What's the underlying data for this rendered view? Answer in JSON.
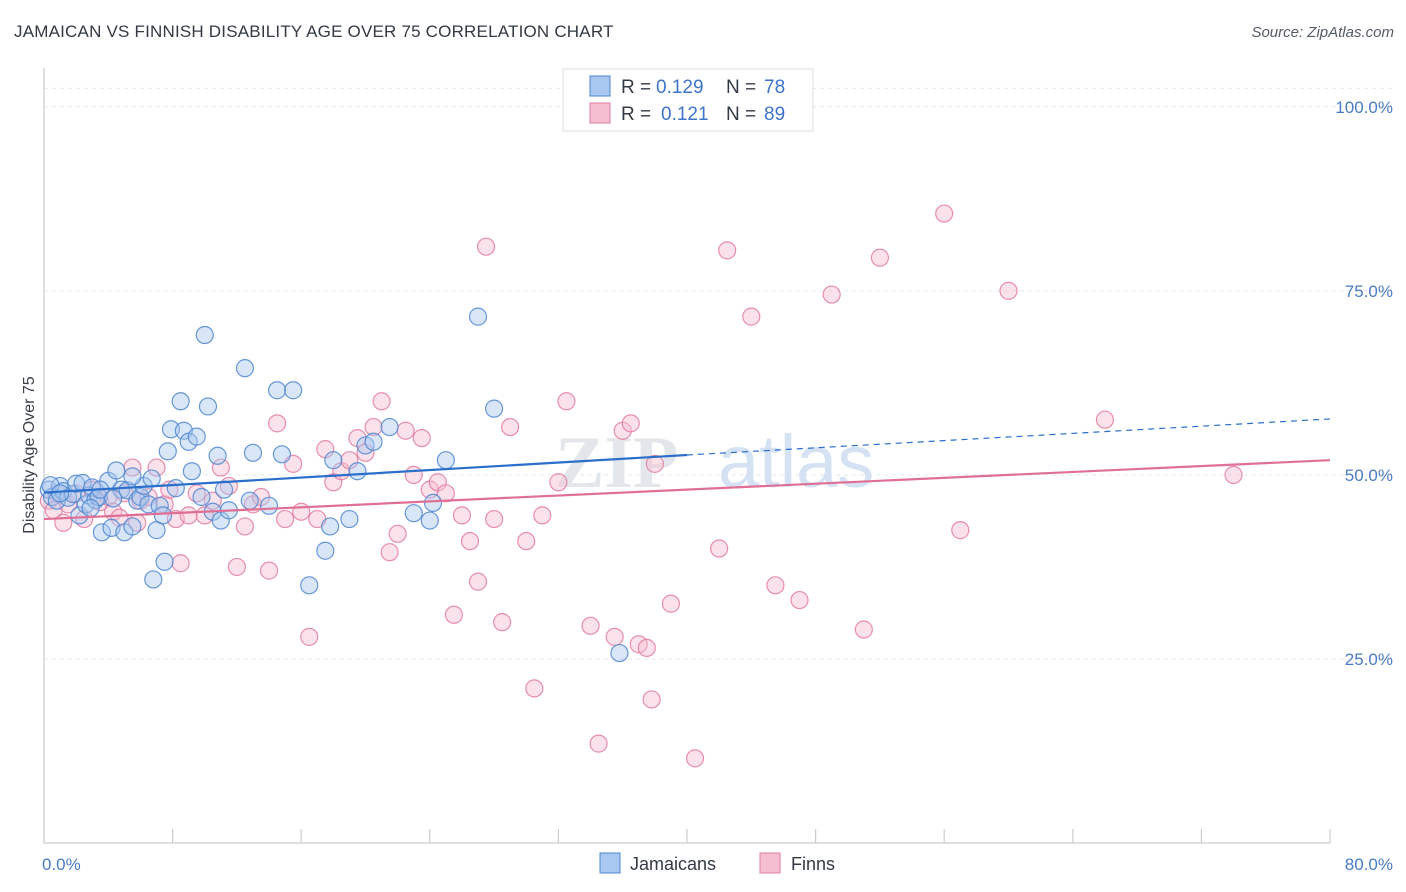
{
  "title": "JAMAICAN VS FINNISH DISABILITY AGE OVER 75 CORRELATION CHART",
  "source": "Source: ZipAtlas.com",
  "watermark": {
    "zip": "ZIP",
    "atlas": "atlas"
  },
  "chart_data": {
    "type": "scatter",
    "xlabel": "",
    "ylabel": "Disability Age Over 75",
    "xlim": [
      0,
      80
    ],
    "ylim": [
      0,
      105
    ],
    "x_tick_labels": [
      "0.0%",
      "80.0%"
    ],
    "y_ticks": [
      25,
      50,
      75,
      100
    ],
    "y_tick_labels": [
      "25.0%",
      "50.0%",
      "75.0%",
      "100.0%"
    ],
    "grid": true,
    "legend_placement": "top-center",
    "colors": {
      "jamaicans_fill": "#a9c8ef",
      "jamaicans_stroke": "#4f86d0",
      "jamaicans_line": "#2a6fcb",
      "finns_fill": "#f6bfd1",
      "finns_stroke": "#e37ba0",
      "finns_line": "#e06f96"
    },
    "legend": [
      {
        "r_label": "R =",
        "r_value": "0.129",
        "n_label": "N =",
        "n_value": "78"
      },
      {
        "r_label": "R =",
        "r_value": "0.121",
        "n_label": "N =",
        "n_value": "89"
      }
    ],
    "series": [
      {
        "name": "Jamaicans",
        "trend": {
          "x0": 0,
          "y0": 47.6,
          "x1": 40,
          "y1": 52.7,
          "dash_x1": 80,
          "dash_y1": 57.6
        },
        "points": [
          [
            0.3,
            48.0
          ],
          [
            0.5,
            47.0
          ],
          [
            0.8,
            46.5
          ],
          [
            1.0,
            48.5
          ],
          [
            1.2,
            47.8
          ],
          [
            1.5,
            46.9
          ],
          [
            1.8,
            47.4
          ],
          [
            2.0,
            48.8
          ],
          [
            2.2,
            44.5
          ],
          [
            2.4,
            48.9
          ],
          [
            2.6,
            46.0
          ],
          [
            2.8,
            47.2
          ],
          [
            3.0,
            48.3
          ],
          [
            3.2,
            46.6
          ],
          [
            3.4,
            47.0
          ],
          [
            3.6,
            42.2
          ],
          [
            4.0,
            49.2
          ],
          [
            4.2,
            42.8
          ],
          [
            4.5,
            50.6
          ],
          [
            4.8,
            48.0
          ],
          [
            5.0,
            42.2
          ],
          [
            5.2,
            47.9
          ],
          [
            5.5,
            43.0
          ],
          [
            5.8,
            46.5
          ],
          [
            6.0,
            47.0
          ],
          [
            6.2,
            48.5
          ],
          [
            6.5,
            46.0
          ],
          [
            6.8,
            35.8
          ],
          [
            7.0,
            42.5
          ],
          [
            7.2,
            45.8
          ],
          [
            7.5,
            38.2
          ],
          [
            7.7,
            53.2
          ],
          [
            7.9,
            56.2
          ],
          [
            8.2,
            48.2
          ],
          [
            8.5,
            60.0
          ],
          [
            8.7,
            56.0
          ],
          [
            9.0,
            54.5
          ],
          [
            9.2,
            50.5
          ],
          [
            9.5,
            55.2
          ],
          [
            10.0,
            69.0
          ],
          [
            10.2,
            59.3
          ],
          [
            10.5,
            45.0
          ],
          [
            10.8,
            52.6
          ],
          [
            11.0,
            43.8
          ],
          [
            11.5,
            45.2
          ],
          [
            12.5,
            64.5
          ],
          [
            13.0,
            53.0
          ],
          [
            14.0,
            45.8
          ],
          [
            14.5,
            61.5
          ],
          [
            14.8,
            52.8
          ],
          [
            15.5,
            61.5
          ],
          [
            16.5,
            35.0
          ],
          [
            17.5,
            39.7
          ],
          [
            17.8,
            43.0
          ],
          [
            18.0,
            52.0
          ],
          [
            19.0,
            44.0
          ],
          [
            19.5,
            50.5
          ],
          [
            20.0,
            54.0
          ],
          [
            20.5,
            54.5
          ],
          [
            21.5,
            56.5
          ],
          [
            23.0,
            44.8
          ],
          [
            24.0,
            43.8
          ],
          [
            24.2,
            46.2
          ],
          [
            25.0,
            52.0
          ],
          [
            27.0,
            71.5
          ],
          [
            28.0,
            59.0
          ],
          [
            35.8,
            25.8
          ],
          [
            0.4,
            48.6
          ],
          [
            1.0,
            47.5
          ],
          [
            3.5,
            48.0
          ],
          [
            5.5,
            49.8
          ],
          [
            6.7,
            49.5
          ],
          [
            11.2,
            48.0
          ],
          [
            12.8,
            46.5
          ],
          [
            9.8,
            47.0
          ],
          [
            2.9,
            45.5
          ],
          [
            4.3,
            46.8
          ],
          [
            7.4,
            44.5
          ]
        ]
      },
      {
        "name": "Finns",
        "trend": {
          "x0": 0,
          "y0": 44.0,
          "x1": 80,
          "y1": 52.0
        },
        "points": [
          [
            0.3,
            46.5
          ],
          [
            0.6,
            45.2
          ],
          [
            0.8,
            47.5
          ],
          [
            1.2,
            43.5
          ],
          [
            1.5,
            46.0
          ],
          [
            2.0,
            47.5
          ],
          [
            2.5,
            44.0
          ],
          [
            3.0,
            48.0
          ],
          [
            3.5,
            46.3
          ],
          [
            4.0,
            47.0
          ],
          [
            4.3,
            45.0
          ],
          [
            4.7,
            44.2
          ],
          [
            5.0,
            47.5
          ],
          [
            5.5,
            51.0
          ],
          [
            5.8,
            43.5
          ],
          [
            6.0,
            46.5
          ],
          [
            6.5,
            47.0
          ],
          [
            7.0,
            51.0
          ],
          [
            7.5,
            46.0
          ],
          [
            7.8,
            48.0
          ],
          [
            8.2,
            44.0
          ],
          [
            8.5,
            38.0
          ],
          [
            9.0,
            44.5
          ],
          [
            9.5,
            47.5
          ],
          [
            10.0,
            44.5
          ],
          [
            10.5,
            46.5
          ],
          [
            11.0,
            51.0
          ],
          [
            11.5,
            48.5
          ],
          [
            12.0,
            37.5
          ],
          [
            12.5,
            43.0
          ],
          [
            13.0,
            46.0
          ],
          [
            13.5,
            47.0
          ],
          [
            14.0,
            37.0
          ],
          [
            14.5,
            57.0
          ],
          [
            15.0,
            44.0
          ],
          [
            15.5,
            51.5
          ],
          [
            16.0,
            45.0
          ],
          [
            16.5,
            28.0
          ],
          [
            17.0,
            44.0
          ],
          [
            17.5,
            53.5
          ],
          [
            18.0,
            49.0
          ],
          [
            18.5,
            50.5
          ],
          [
            19.0,
            52.0
          ],
          [
            19.5,
            55.0
          ],
          [
            20.0,
            53.0
          ],
          [
            20.5,
            56.5
          ],
          [
            21.0,
            60.0
          ],
          [
            21.5,
            39.5
          ],
          [
            22.0,
            42.0
          ],
          [
            22.5,
            56.0
          ],
          [
            23.0,
            50.0
          ],
          [
            23.5,
            55.0
          ],
          [
            24.0,
            48.0
          ],
          [
            24.5,
            49.0
          ],
          [
            25.0,
            47.5
          ],
          [
            25.5,
            31.0
          ],
          [
            26.0,
            44.5
          ],
          [
            26.5,
            41.0
          ],
          [
            27.0,
            35.5
          ],
          [
            27.5,
            81.0
          ],
          [
            28.0,
            44.0
          ],
          [
            28.5,
            30.0
          ],
          [
            29.0,
            56.5
          ],
          [
            30.0,
            41.0
          ],
          [
            30.5,
            21.0
          ],
          [
            31.0,
            44.5
          ],
          [
            32.0,
            49.0
          ],
          [
            32.5,
            60.0
          ],
          [
            34.0,
            29.5
          ],
          [
            34.5,
            13.5
          ],
          [
            35.5,
            28.0
          ],
          [
            36.0,
            56.0
          ],
          [
            37.0,
            27.0
          ],
          [
            37.5,
            26.5
          ],
          [
            37.8,
            19.5
          ],
          [
            38.0,
            51.5
          ],
          [
            39.0,
            32.5
          ],
          [
            40.5,
            11.5
          ],
          [
            42.0,
            40.0
          ],
          [
            42.5,
            80.5
          ],
          [
            44.0,
            71.5
          ],
          [
            45.5,
            35.0
          ],
          [
            47.0,
            33.0
          ],
          [
            49.0,
            74.5
          ],
          [
            51.0,
            29.0
          ],
          [
            52.0,
            79.5
          ],
          [
            56.0,
            85.5
          ],
          [
            57.0,
            42.5
          ],
          [
            60.0,
            75.0
          ]
        ]
      }
    ],
    "extra_points": {
      "finns": [
        [
          66.0,
          57.5
        ],
        [
          74.0,
          50.0
        ],
        [
          36.5,
          57.0
        ]
      ]
    }
  },
  "bottom_legend": [
    "Jamaicans",
    "Finns"
  ]
}
